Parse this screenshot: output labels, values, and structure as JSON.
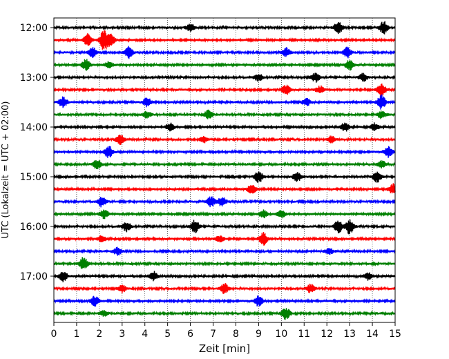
{
  "chart_data": {
    "type": "line",
    "subtype": "helicorder-seismogram",
    "xlabel": "Zeit  [min]",
    "ylabel": "UTC (Lokalzeit = UTC + 02:00)",
    "xlim": [
      0,
      15
    ],
    "x_ticks": [
      "0",
      "1",
      "2",
      "3",
      "4",
      "5",
      "6",
      "7",
      "8",
      "9",
      "10",
      "11",
      "12",
      "13",
      "14",
      "15"
    ],
    "y_tick_labels": [
      "12:00",
      "13:00",
      "14:00",
      "15:00",
      "16:00",
      "17:00"
    ],
    "grid": "vertical dotted at each minute",
    "trace_interval_min": 15,
    "trace_colors": [
      "#000000",
      "#ff0000",
      "#0000ff",
      "#008000"
    ],
    "traces": [
      {
        "start": "12:00",
        "color": "#000000",
        "bursts": [
          [
            6.0,
            0.6
          ],
          [
            12.5,
            1.0
          ],
          [
            14.5,
            1.0
          ]
        ]
      },
      {
        "start": "12:15",
        "color": "#ff0000",
        "bursts": [
          [
            1.5,
            1.0
          ],
          [
            2.2,
            1.6
          ],
          [
            2.5,
            0.8
          ]
        ]
      },
      {
        "start": "12:30",
        "color": "#0000ff",
        "bursts": [
          [
            1.7,
            0.8
          ],
          [
            3.3,
            0.9
          ],
          [
            10.2,
            0.7
          ],
          [
            12.9,
            0.8
          ]
        ]
      },
      {
        "start": "12:45",
        "color": "#008000",
        "bursts": [
          [
            1.4,
            0.9
          ],
          [
            2.4,
            0.5
          ],
          [
            13.0,
            0.8
          ]
        ]
      },
      {
        "start": "13:00",
        "color": "#000000",
        "bursts": [
          [
            9.0,
            0.6
          ],
          [
            11.5,
            0.7
          ],
          [
            13.6,
            0.6
          ]
        ]
      },
      {
        "start": "13:15",
        "color": "#ff0000",
        "bursts": [
          [
            10.2,
            0.8
          ],
          [
            11.7,
            0.6
          ],
          [
            14.4,
            1.0
          ]
        ]
      },
      {
        "start": "13:30",
        "color": "#0000ff",
        "bursts": [
          [
            0.4,
            0.8
          ],
          [
            4.1,
            0.7
          ],
          [
            11.1,
            0.6
          ],
          [
            14.4,
            1.1
          ]
        ]
      },
      {
        "start": "13:45",
        "color": "#008000",
        "bursts": [
          [
            6.8,
            0.7
          ],
          [
            4.1,
            0.5
          ],
          [
            14.4,
            0.6
          ]
        ]
      },
      {
        "start": "14:00",
        "color": "#000000",
        "bursts": [
          [
            5.1,
            0.6
          ],
          [
            12.8,
            0.7
          ],
          [
            14.1,
            0.6
          ]
        ]
      },
      {
        "start": "14:15",
        "color": "#ff0000",
        "bursts": [
          [
            2.9,
            0.8
          ],
          [
            6.6,
            0.5
          ],
          [
            12.2,
            0.5
          ]
        ]
      },
      {
        "start": "14:30",
        "color": "#0000ff",
        "bursts": [
          [
            2.4,
            1.0
          ],
          [
            14.7,
            0.8
          ]
        ]
      },
      {
        "start": "14:45",
        "color": "#008000",
        "bursts": [
          [
            1.9,
            0.8
          ],
          [
            14.4,
            0.6
          ]
        ]
      },
      {
        "start": "15:00",
        "color": "#000000",
        "bursts": [
          [
            9.0,
            0.9
          ],
          [
            10.7,
            0.7
          ],
          [
            14.2,
            0.9
          ]
        ]
      },
      {
        "start": "15:15",
        "color": "#ff0000",
        "bursts": [
          [
            8.7,
            0.7
          ],
          [
            14.9,
            0.8
          ]
        ]
      },
      {
        "start": "15:30",
        "color": "#0000ff",
        "bursts": [
          [
            2.1,
            0.8
          ],
          [
            6.9,
            0.8
          ],
          [
            7.4,
            0.8
          ]
        ]
      },
      {
        "start": "15:45",
        "color": "#008000",
        "bursts": [
          [
            2.2,
            0.7
          ],
          [
            9.2,
            0.6
          ],
          [
            10.0,
            0.6
          ]
        ]
      },
      {
        "start": "16:00",
        "color": "#000000",
        "bursts": [
          [
            3.2,
            0.8
          ],
          [
            6.2,
            1.0
          ],
          [
            12.5,
            1.0
          ],
          [
            13.0,
            1.2
          ]
        ]
      },
      {
        "start": "16:15",
        "color": "#ff0000",
        "bursts": [
          [
            9.2,
            1.0
          ],
          [
            2.1,
            0.5
          ],
          [
            7.3,
            0.5
          ]
        ]
      },
      {
        "start": "16:30",
        "color": "#0000ff",
        "bursts": [
          [
            2.8,
            0.6
          ],
          [
            12.1,
            0.5
          ]
        ]
      },
      {
        "start": "16:45",
        "color": "#008000",
        "bursts": [
          [
            1.3,
            1.0
          ]
        ]
      },
      {
        "start": "17:00",
        "color": "#000000",
        "bursts": [
          [
            0.4,
            0.8
          ],
          [
            4.4,
            0.7
          ],
          [
            13.8,
            0.6
          ]
        ]
      },
      {
        "start": "17:15",
        "color": "#ff0000",
        "bursts": [
          [
            3.0,
            0.6
          ],
          [
            7.5,
            0.8
          ],
          [
            11.3,
            0.7
          ]
        ]
      },
      {
        "start": "17:30",
        "color": "#0000ff",
        "bursts": [
          [
            1.8,
            0.8
          ],
          [
            9.0,
            0.8
          ]
        ]
      },
      {
        "start": "17:45",
        "color": "#008000",
        "bursts": [
          [
            10.2,
            1.0
          ],
          [
            2.2,
            0.4
          ]
        ]
      }
    ]
  }
}
